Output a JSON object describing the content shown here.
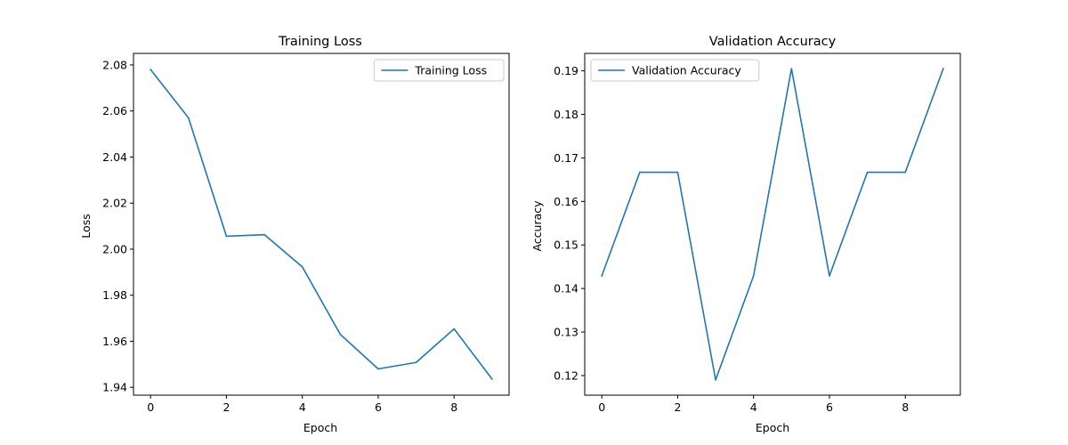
{
  "chart_data": [
    {
      "type": "line",
      "title": "Training Loss",
      "xlabel": "Epoch",
      "ylabel": "Loss",
      "x": [
        0,
        1,
        2,
        3,
        4,
        5,
        6,
        7,
        8,
        9
      ],
      "series": [
        {
          "name": "Training Loss",
          "color": "#1f77b4",
          "values": [
            2.078,
            2.057,
            2.0056,
            2.0063,
            1.9923,
            1.963,
            1.948,
            1.9508,
            1.9654,
            1.9436
          ]
        }
      ],
      "xlim": [
        -0.45,
        9.45
      ],
      "ylim": [
        1.9366,
        2.085
      ],
      "xticks": [
        0,
        2,
        4,
        6,
        8
      ],
      "xtick_labels": [
        "0",
        "2",
        "4",
        "6",
        "8"
      ],
      "yticks": [
        1.94,
        1.96,
        1.98,
        2.0,
        2.02,
        2.04,
        2.06,
        2.08
      ],
      "ytick_labels": [
        "1.94",
        "1.96",
        "1.98",
        "2.00",
        "2.02",
        "2.04",
        "2.06",
        "2.08"
      ],
      "legend": "top-right",
      "grid": false
    },
    {
      "type": "line",
      "title": "Validation Accuracy",
      "xlabel": "Epoch",
      "ylabel": "Accuracy",
      "x": [
        0,
        1,
        2,
        3,
        4,
        5,
        6,
        7,
        8,
        9
      ],
      "series": [
        {
          "name": "Validation Accuracy",
          "color": "#1f77b4",
          "values": [
            0.1429,
            0.1667,
            0.1667,
            0.119,
            0.1429,
            0.1905,
            0.1429,
            0.1667,
            0.1667,
            0.1905
          ]
        }
      ],
      "xlim": [
        -0.45,
        9.45
      ],
      "ylim": [
        0.1155,
        0.194
      ],
      "xticks": [
        0,
        2,
        4,
        6,
        8
      ],
      "xtick_labels": [
        "0",
        "2",
        "4",
        "6",
        "8"
      ],
      "yticks": [
        0.12,
        0.13,
        0.14,
        0.15,
        0.16,
        0.17,
        0.18,
        0.19
      ],
      "ytick_labels": [
        "0.12",
        "0.13",
        "0.14",
        "0.15",
        "0.16",
        "0.17",
        "0.18",
        "0.19"
      ],
      "legend": "top-left",
      "grid": false
    }
  ]
}
